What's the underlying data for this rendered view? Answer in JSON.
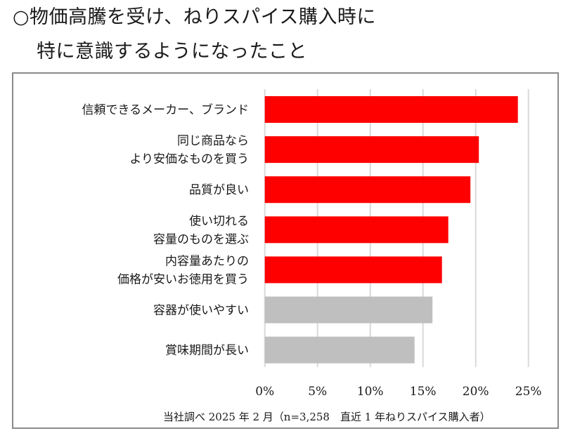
{
  "title": {
    "line1": "○物価高騰を受け、ねりスパイス購入時に",
    "line2": "特に意識するようになったこと"
  },
  "footnote": "当社調べ 2025 年 2 月（n=3,258　直近 1 年ねりスパイス購入者）",
  "colors": {
    "highlight": "#ff0000",
    "other": "#bfbfbf",
    "grid": "#d9d9d9",
    "frame": "#8a8a8a"
  },
  "chart_data": {
    "type": "bar",
    "orientation": "horizontal",
    "title": "○物価高騰を受け、ねりスパイス購入時に特に意識するようになったこと",
    "xlabel": "",
    "ylabel": "",
    "xlim": [
      0,
      25
    ],
    "unit": "%",
    "grid": true,
    "legend": "none",
    "x_ticks": [
      "0%",
      "5%",
      "10%",
      "15%",
      "20%",
      "25%"
    ],
    "categories": [
      [
        "信頼できるメーカー、ブランド"
      ],
      [
        "同じ商品なら",
        "より安価なものを買う"
      ],
      [
        "品質が良い"
      ],
      [
        "使い切れる",
        "容量のものを選ぶ"
      ],
      [
        "内容量あたりの",
        "価格が安いお徳用を買う"
      ],
      [
        "容器が使いやすい"
      ],
      [
        "賞味期間が長い"
      ]
    ],
    "values": [
      24.0,
      20.3,
      19.5,
      17.4,
      16.8,
      15.9,
      14.2
    ],
    "highlighted": [
      true,
      true,
      true,
      true,
      true,
      false,
      false
    ]
  }
}
